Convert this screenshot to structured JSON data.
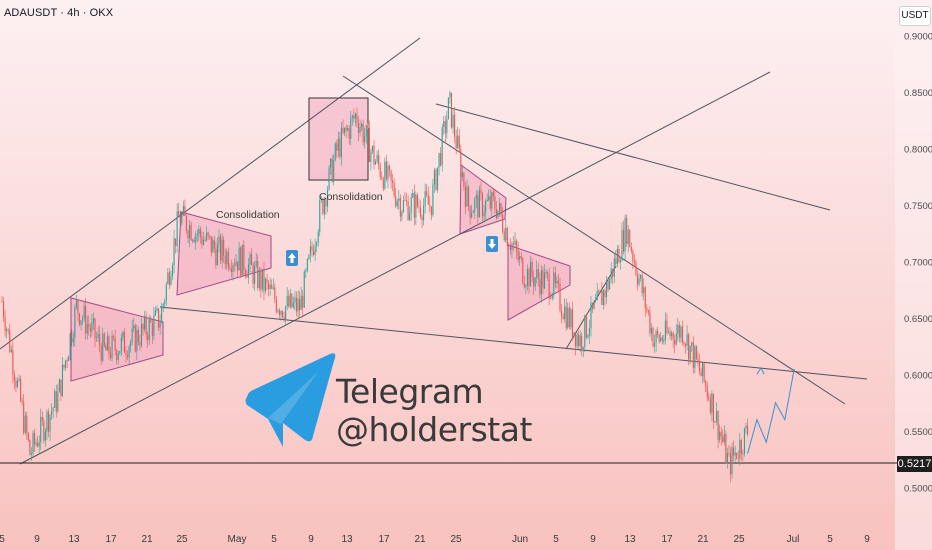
{
  "header": {
    "symbol": "ADAUSDT · 4h · OKX",
    "currency": "USDT"
  },
  "colors": {
    "bg_top": "#fdecef",
    "bg_bottom": "#f8c4c1",
    "candle_up": "#26a69a",
    "candle_down": "#ef5350",
    "pattern_fill": "#f0a7be",
    "pattern_stroke": "#a04a88",
    "trendline": "#50535e",
    "accent_arrow": "#3a8fd0",
    "telegram_blue": "#2a9de0"
  },
  "current_price": "0.5217",
  "annotations": {
    "consolidation_1": "Consolidation",
    "consolidation_2": "Consolidation"
  },
  "watermark": {
    "line1": "Telegram",
    "line2": "@holderstat",
    "icon": "telegram-icon"
  },
  "chart_data": {
    "type": "candlestick",
    "symbol": "ADAUSDT",
    "interval": "4h",
    "exchange": "OKX",
    "ylim": [
      0.48,
      0.92
    ],
    "y_ticks": [
      "0.9000",
      "0.8500",
      "0.8000",
      "0.7500",
      "0.7000",
      "0.6500",
      "0.6000",
      "0.5500",
      "0.5000"
    ],
    "x_ticks": [
      "5",
      "9",
      "13",
      "17",
      "21",
      "25",
      "May",
      "5",
      "9",
      "13",
      "17",
      "21",
      "25",
      "Jun",
      "5",
      "9",
      "13",
      "17",
      "21",
      "25",
      "Jul",
      "5",
      "9"
    ],
    "approx_close_path": [
      [
        "Apr 5",
        0.665
      ],
      [
        "Apr 8",
        0.53
      ],
      [
        "Apr 11",
        0.58
      ],
      [
        "Apr 13",
        0.66
      ],
      [
        "Apr 16",
        0.62
      ],
      [
        "Apr 19",
        0.63
      ],
      [
        "Apr 22",
        0.65
      ],
      [
        "Apr 24",
        0.74
      ],
      [
        "Apr 28",
        0.71
      ],
      [
        "May 1",
        0.7
      ],
      [
        "May 5",
        0.66
      ],
      [
        "May 7",
        0.66
      ],
      [
        "May 9",
        0.74
      ],
      [
        "May 11",
        0.8
      ],
      [
        "May 13",
        0.83
      ],
      [
        "May 15",
        0.79
      ],
      [
        "May 18",
        0.75
      ],
      [
        "May 21",
        0.75
      ],
      [
        "May 23",
        0.84
      ],
      [
        "May 25",
        0.75
      ],
      [
        "May 28",
        0.75
      ],
      [
        "May 31",
        0.69
      ],
      [
        "Jun 3",
        0.68
      ],
      [
        "Jun 6",
        0.63
      ],
      [
        "Jun 9",
        0.68
      ],
      [
        "Jun 11",
        0.73
      ],
      [
        "Jun 14",
        0.63
      ],
      [
        "Jun 17",
        0.64
      ],
      [
        "Jun 20",
        0.58
      ],
      [
        "Jun 22",
        0.52
      ],
      [
        "Jun 24",
        0.55
      ]
    ],
    "projection_path": [
      [
        "Jun 24",
        0.53
      ],
      [
        "Jun 25",
        0.56
      ],
      [
        "Jun 26",
        0.54
      ],
      [
        "Jun 27",
        0.575
      ],
      [
        "Jun 28",
        0.56
      ],
      [
        "Jun 29",
        0.605
      ]
    ],
    "horizontal_levels": [
      0.5217
    ],
    "annotations": [
      "Consolidation",
      "Consolidation"
    ]
  }
}
